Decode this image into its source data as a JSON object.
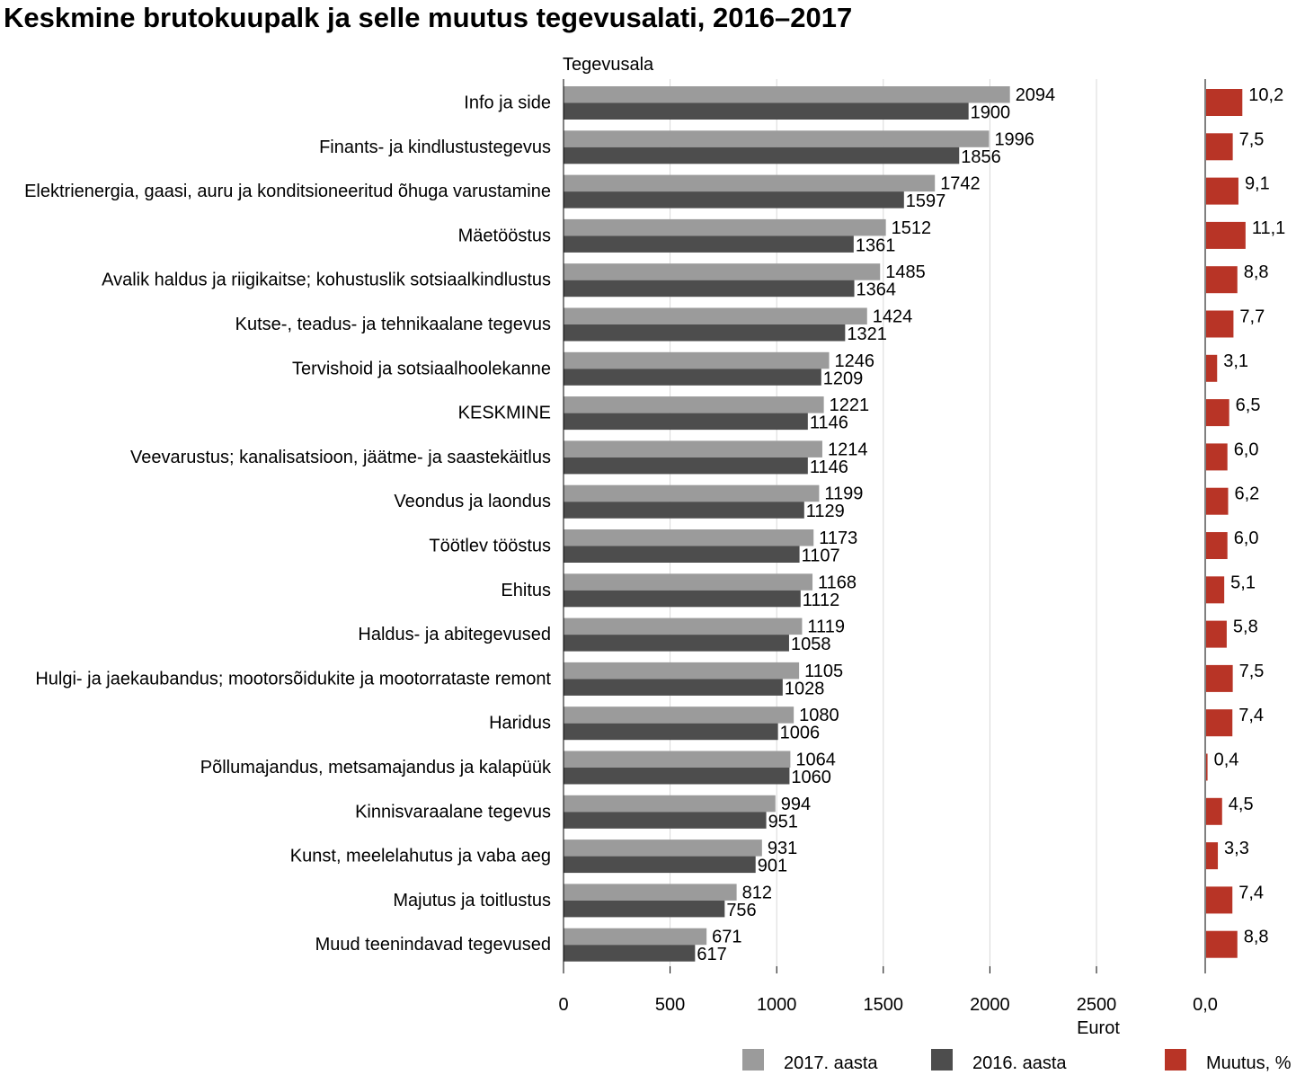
{
  "chart_data": {
    "type": "bar",
    "orientation": "horizontal",
    "title": "Keskmine brutokuupalk ja selle muutus tegevusalati, 2016–2017",
    "category_axis_label": "Tegevusala",
    "value_axis_label": "Eurot",
    "categories": [
      "Info ja side",
      "Finants- ja kindlustustegevus",
      "Elektrienergia, gaasi, auru ja konditsioneeritud õhuga varustamine",
      "Mäetööstus",
      "Avalik haldus ja riigikaitse; kohustuslik sotsiaalkindlustus",
      "Kutse-, teadus- ja tehnikaalane tegevus",
      "Tervishoid ja sotsiaalhoolekanne",
      "KESKMINE",
      "Veevarustus; kanalisatsioon, jäätme- ja saastekäitlus",
      "Veondus ja laondus",
      "Töötlev tööstus",
      "Ehitus",
      "Haldus- ja abitegevused",
      "Hulgi- ja jaekaubandus; mootorsõidukite ja mootorrataste remont",
      "Haridus",
      "Põllumajandus, metsamajandus ja kalapüük",
      "Kinnisvaraalane tegevus",
      "Kunst, meelelahutus ja vaba aeg",
      "Majutus ja toitlustus",
      "Muud teenindavad tegevused"
    ],
    "series": [
      {
        "name": "2017. aasta",
        "color": "#9b9b9b",
        "values": [
          2094,
          1996,
          1742,
          1512,
          1485,
          1424,
          1246,
          1221,
          1214,
          1199,
          1173,
          1168,
          1119,
          1105,
          1080,
          1064,
          994,
          931,
          812,
          671
        ]
      },
      {
        "name": "2016. aasta",
        "color": "#4d4d4d",
        "values": [
          1900,
          1856,
          1597,
          1361,
          1364,
          1321,
          1209,
          1146,
          1146,
          1129,
          1107,
          1112,
          1058,
          1028,
          1006,
          1060,
          951,
          901,
          756,
          617
        ]
      }
    ],
    "change_series": {
      "name": "Muutus, %",
      "color": "#b83426",
      "values": [
        "10,2",
        "7,5",
        "9,1",
        "11,1",
        "8,8",
        "7,7",
        "3,1",
        "6,5",
        "6,0",
        "6,2",
        "6,0",
        "5,1",
        "5,8",
        "7,5",
        "7,4",
        "0,4",
        "4,5",
        "3,3",
        "7,4",
        "8,8"
      ],
      "axis_tick": "0,0"
    },
    "value_axis": {
      "min": 0,
      "max": 2500,
      "ticks": [
        "0",
        "500",
        "1000",
        "1500",
        "2000",
        "2500"
      ]
    },
    "grid": true,
    "legend_position": "bottom"
  }
}
